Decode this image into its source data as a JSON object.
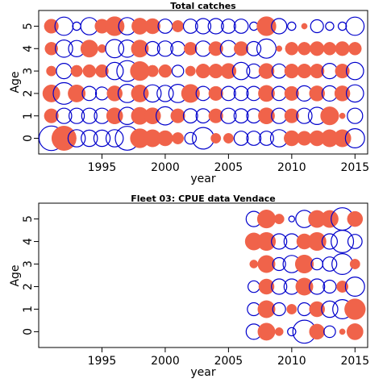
{
  "colors": {
    "positive": "#f0634a",
    "negative": "#0000cc"
  },
  "chart_data": [
    {
      "type": "bubble",
      "title": "Total catches",
      "xlabel": "year",
      "ylabel": "Age",
      "xlim": [
        1990.0,
        2016.0
      ],
      "ylim": [
        -0.7,
        5.7
      ],
      "xticks": [
        "1995",
        "2000",
        "2005",
        "2010",
        "2015"
      ],
      "yticks": [
        "0",
        "1",
        "2",
        "3",
        "4",
        "5"
      ],
      "points": [
        [
          1991,
          0,
          -0.9
        ],
        [
          1992,
          0,
          0.9
        ],
        [
          1993,
          0,
          -0.45
        ],
        [
          1994,
          0,
          -0.4
        ],
        [
          1995,
          0,
          -0.4
        ],
        [
          1996,
          0,
          -0.45
        ],
        [
          1997,
          0,
          -0.85
        ],
        [
          1998,
          0,
          0.55
        ],
        [
          1999,
          0,
          0.45
        ],
        [
          2000,
          0,
          0.35
        ],
        [
          2001,
          0,
          0.2
        ],
        [
          2002,
          0,
          -0.2
        ],
        [
          2003,
          0,
          -0.7
        ],
        [
          2004,
          0,
          0.15
        ],
        [
          2005,
          0,
          0.15
        ],
        [
          2006,
          0,
          -0.3
        ],
        [
          2007,
          0,
          -0.3
        ],
        [
          2008,
          0,
          -0.3
        ],
        [
          2009,
          0,
          -0.45
        ],
        [
          2010,
          0,
          0.35
        ],
        [
          2011,
          0,
          0.3
        ],
        [
          2012,
          0,
          0.35
        ],
        [
          2013,
          0,
          0.45
        ],
        [
          2014,
          0,
          0.45
        ],
        [
          2015,
          0,
          -0.55
        ],
        [
          1991,
          1,
          0.3
        ],
        [
          1992,
          1,
          -0.35
        ],
        [
          1993,
          1,
          -0.35
        ],
        [
          1994,
          1,
          -0.35
        ],
        [
          1995,
          1,
          -0.35
        ],
        [
          1996,
          1,
          0.4
        ],
        [
          1997,
          1,
          -0.45
        ],
        [
          1998,
          1,
          0.45
        ],
        [
          1999,
          1,
          0.4
        ],
        [
          2000,
          1,
          -0.5
        ],
        [
          2001,
          1,
          0.3
        ],
        [
          2002,
          1,
          -0.3
        ],
        [
          2003,
          1,
          -0.3
        ],
        [
          2004,
          1,
          0.3
        ],
        [
          2005,
          1,
          -0.35
        ],
        [
          2006,
          1,
          -0.3
        ],
        [
          2007,
          1,
          -0.3
        ],
        [
          2008,
          1,
          0.4
        ],
        [
          2009,
          1,
          -0.35
        ],
        [
          2010,
          1,
          0.3
        ],
        [
          2011,
          1,
          -0.35
        ],
        [
          2012,
          1,
          -0.45
        ],
        [
          2013,
          1,
          0.5
        ],
        [
          2014,
          1,
          0.05
        ],
        [
          2015,
          1,
          -0.35
        ],
        [
          1991,
          2,
          0.45
        ],
        [
          1992,
          2,
          -0.7
        ],
        [
          1993,
          2,
          0.45
        ],
        [
          1994,
          2,
          -0.3
        ],
        [
          1995,
          2,
          -0.25
        ],
        [
          1996,
          2,
          0.35
        ],
        [
          1997,
          2,
          -0.5
        ],
        [
          1998,
          2,
          0.45
        ],
        [
          1999,
          2,
          -0.45
        ],
        [
          2000,
          2,
          -0.4
        ],
        [
          2001,
          2,
          -0.5
        ],
        [
          2002,
          2,
          0.5
        ],
        [
          2003,
          2,
          -0.3
        ],
        [
          2004,
          2,
          0.3
        ],
        [
          2005,
          2,
          -0.3
        ],
        [
          2006,
          2,
          -0.3
        ],
        [
          2007,
          2,
          -0.3
        ],
        [
          2008,
          2,
          0.4
        ],
        [
          2009,
          2,
          -0.3
        ],
        [
          2010,
          2,
          0.3
        ],
        [
          2011,
          2,
          -0.35
        ],
        [
          2012,
          2,
          0.35
        ],
        [
          2013,
          2,
          -0.35
        ],
        [
          2014,
          2,
          0.35
        ],
        [
          2015,
          2,
          -0.45
        ],
        [
          1991,
          3,
          0.15
        ],
        [
          1992,
          3,
          -0.35
        ],
        [
          1993,
          3,
          0.2
        ],
        [
          1994,
          3,
          0.25
        ],
        [
          1995,
          3,
          0.25
        ],
        [
          1996,
          3,
          -0.45
        ],
        [
          1997,
          3,
          -0.65
        ],
        [
          1998,
          3,
          0.55
        ],
        [
          1999,
          3,
          0.2
        ],
        [
          2000,
          3,
          0.25
        ],
        [
          2001,
          3,
          -0.2
        ],
        [
          2002,
          3,
          0.15
        ],
        [
          2003,
          3,
          0.3
        ],
        [
          2004,
          3,
          0.3
        ],
        [
          2005,
          3,
          0.35
        ],
        [
          2006,
          3,
          -0.45
        ],
        [
          2007,
          3,
          -0.3
        ],
        [
          2008,
          3,
          0.35
        ],
        [
          2009,
          3,
          -0.3
        ],
        [
          2010,
          3,
          0.3
        ],
        [
          2011,
          3,
          0.3
        ],
        [
          2012,
          3,
          0.3
        ],
        [
          2013,
          3,
          -0.35
        ],
        [
          2014,
          3,
          0.3
        ],
        [
          2015,
          3,
          -0.45
        ],
        [
          1991,
          4,
          0.25
        ],
        [
          1992,
          4,
          -0.45
        ],
        [
          1993,
          4,
          -0.4
        ],
        [
          1994,
          4,
          0.45
        ],
        [
          1995,
          4,
          0.1
        ],
        [
          1996,
          4,
          -0.5
        ],
        [
          1997,
          4,
          -0.45
        ],
        [
          1998,
          4,
          0.45
        ],
        [
          1999,
          4,
          -0.3
        ],
        [
          2000,
          4,
          -0.35
        ],
        [
          2001,
          4,
          -0.3
        ],
        [
          2002,
          4,
          0.25
        ],
        [
          2003,
          4,
          -0.35
        ],
        [
          2004,
          4,
          0.3
        ],
        [
          2005,
          4,
          -0.4
        ],
        [
          2006,
          4,
          0.3
        ],
        [
          2007,
          4,
          -0.3
        ],
        [
          2008,
          4,
          -0.55
        ],
        [
          2009,
          4,
          0.05
        ],
        [
          2010,
          4,
          0.25
        ],
        [
          2011,
          4,
          0.25
        ],
        [
          2012,
          4,
          0.3
        ],
        [
          2013,
          4,
          0.25
        ],
        [
          2014,
          4,
          0.3
        ],
        [
          2015,
          4,
          0.25
        ],
        [
          1991,
          5,
          0.3
        ],
        [
          1992,
          5,
          -0.5
        ],
        [
          1993,
          5,
          -0.1
        ],
        [
          1994,
          5,
          -0.45
        ],
        [
          1995,
          5,
          0.3
        ],
        [
          1996,
          5,
          0.55
        ],
        [
          1997,
          5,
          -0.45
        ],
        [
          1998,
          5,
          0.4
        ],
        [
          1999,
          5,
          0.35
        ],
        [
          2000,
          5,
          -0.3
        ],
        [
          2001,
          5,
          0.2
        ],
        [
          2002,
          5,
          -0.3
        ],
        [
          2003,
          5,
          -0.35
        ],
        [
          2004,
          5,
          -0.35
        ],
        [
          2005,
          5,
          -0.3
        ],
        [
          2006,
          5,
          -0.3
        ],
        [
          2007,
          5,
          -0.1
        ],
        [
          2008,
          5,
          0.55
        ],
        [
          2009,
          5,
          -0.35
        ],
        [
          2010,
          5,
          -0.1
        ],
        [
          2011,
          5,
          0.05
        ],
        [
          2012,
          5,
          -0.25
        ],
        [
          2013,
          5,
          -0.1
        ],
        [
          2014,
          5,
          -0.1
        ],
        [
          2015,
          5,
          -0.5
        ]
      ]
    },
    {
      "type": "bubble",
      "title": "Fleet 03:  CPUE data Vendace",
      "xlabel": "year",
      "ylabel": "Age",
      "xlim": [
        1990.0,
        2016.0
      ],
      "ylim": [
        -0.7,
        5.7
      ],
      "xticks": [
        "1995",
        "2000",
        "2005",
        "2010",
        "2015"
      ],
      "yticks": [
        "0",
        "1",
        "2",
        "3",
        "4",
        "5"
      ],
      "points": [
        [
          2007,
          0,
          -0.35
        ],
        [
          2008,
          0,
          0.45
        ],
        [
          2009,
          0,
          0.1
        ],
        [
          2010,
          0,
          -0.1
        ],
        [
          2011,
          0,
          -0.8
        ],
        [
          2012,
          0,
          0.35
        ],
        [
          2013,
          0,
          -0.2
        ],
        [
          2014,
          0,
          0.05
        ],
        [
          2015,
          0,
          0.4
        ],
        [
          2007,
          1,
          -0.25
        ],
        [
          2008,
          1,
          0.45
        ],
        [
          2009,
          1,
          -0.25
        ],
        [
          2010,
          1,
          0.15
        ],
        [
          2011,
          1,
          -0.25
        ],
        [
          2012,
          1,
          0.35
        ],
        [
          2013,
          1,
          -0.4
        ],
        [
          2014,
          1,
          -0.55
        ],
        [
          2015,
          1,
          0.65
        ],
        [
          2007,
          2,
          -0.2
        ],
        [
          2008,
          2,
          0.35
        ],
        [
          2009,
          2,
          -0.35
        ],
        [
          2010,
          2,
          -0.35
        ],
        [
          2011,
          2,
          0.45
        ],
        [
          2012,
          2,
          -0.35
        ],
        [
          2013,
          2,
          -0.25
        ],
        [
          2014,
          2,
          0.2
        ],
        [
          2015,
          2,
          -0.55
        ],
        [
          2007,
          3,
          0.1
        ],
        [
          2008,
          3,
          0.45
        ],
        [
          2009,
          3,
          -0.25
        ],
        [
          2010,
          3,
          -0.45
        ],
        [
          2011,
          3,
          0.5
        ],
        [
          2012,
          3,
          -0.2
        ],
        [
          2013,
          3,
          -0.3
        ],
        [
          2014,
          3,
          -0.65
        ],
        [
          2015,
          3,
          0.15
        ],
        [
          2007,
          4,
          0.45
        ],
        [
          2008,
          4,
          0.5
        ],
        [
          2009,
          4,
          -0.35
        ],
        [
          2010,
          4,
          -0.35
        ],
        [
          2011,
          4,
          0.35
        ],
        [
          2012,
          4,
          0.5
        ],
        [
          2013,
          4,
          -0.35
        ],
        [
          2014,
          4,
          -0.75
        ],
        [
          2015,
          4,
          -0.3
        ],
        [
          2007,
          5,
          -0.35
        ],
        [
          2008,
          5,
          0.5
        ],
        [
          2009,
          5,
          0.15
        ],
        [
          2010,
          5,
          -0.05
        ],
        [
          2011,
          5,
          -0.45
        ],
        [
          2012,
          5,
          0.45
        ],
        [
          2013,
          5,
          0.45
        ],
        [
          2014,
          5,
          -0.75
        ],
        [
          2015,
          5,
          0.35
        ]
      ]
    }
  ]
}
